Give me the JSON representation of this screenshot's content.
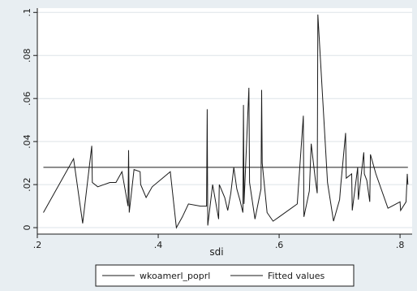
{
  "chart_data": {
    "type": "line",
    "xlabel": "sdi",
    "ylabel": "",
    "xlim": [
      0.2,
      0.82
    ],
    "ylim": [
      -0.003,
      0.102
    ],
    "xticks": [
      0.2,
      0.4,
      0.6,
      0.8
    ],
    "xtick_labels": [
      ".2",
      ".4",
      ".6",
      ".8"
    ],
    "yticks": [
      0,
      0.02,
      0.04,
      0.06,
      0.08,
      0.1
    ],
    "ytick_labels": [
      "0",
      ".02",
      ".04",
      ".06",
      ".08",
      ".1"
    ],
    "grid": "horizontal",
    "legend_position": "bottom",
    "series": [
      {
        "name": "wkoamerl_poprl",
        "color": "#1a1a1a",
        "points": [
          [
            0.21,
            0.007
          ],
          [
            0.26,
            0.032
          ],
          [
            0.275,
            0.002
          ],
          [
            0.29,
            0.038
          ],
          [
            0.291,
            0.021
          ],
          [
            0.3,
            0.019
          ],
          [
            0.32,
            0.021
          ],
          [
            0.33,
            0.021
          ],
          [
            0.34,
            0.026
          ],
          [
            0.35,
            0.01
          ],
          [
            0.351,
            0.036
          ],
          [
            0.352,
            0.007
          ],
          [
            0.36,
            0.027
          ],
          [
            0.37,
            0.026
          ],
          [
            0.371,
            0.02
          ],
          [
            0.38,
            0.014
          ],
          [
            0.39,
            0.019
          ],
          [
            0.42,
            0.026
          ],
          [
            0.43,
            0.0
          ],
          [
            0.44,
            0.005
          ],
          [
            0.45,
            0.011
          ],
          [
            0.47,
            0.01
          ],
          [
            0.48,
            0.01
          ],
          [
            0.481,
            0.055
          ],
          [
            0.482,
            0.001
          ],
          [
            0.49,
            0.02
          ],
          [
            0.5,
            0.004
          ],
          [
            0.501,
            0.02
          ],
          [
            0.51,
            0.014
          ],
          [
            0.515,
            0.008
          ],
          [
            0.52,
            0.016
          ],
          [
            0.525,
            0.028
          ],
          [
            0.53,
            0.018
          ],
          [
            0.535,
            0.013
          ],
          [
            0.54,
            0.007
          ],
          [
            0.541,
            0.057
          ],
          [
            0.542,
            0.011
          ],
          [
            0.55,
            0.065
          ],
          [
            0.551,
            0.021
          ],
          [
            0.56,
            0.004
          ],
          [
            0.57,
            0.018
          ],
          [
            0.571,
            0.064
          ],
          [
            0.572,
            0.03
          ],
          [
            0.58,
            0.007
          ],
          [
            0.59,
            0.003
          ],
          [
            0.6,
            0.005
          ],
          [
            0.63,
            0.011
          ],
          [
            0.64,
            0.052
          ],
          [
            0.641,
            0.005
          ],
          [
            0.65,
            0.017
          ],
          [
            0.653,
            0.039
          ],
          [
            0.66,
            0.022
          ],
          [
            0.663,
            0.016
          ],
          [
            0.664,
            0.099
          ],
          [
            0.68,
            0.021
          ],
          [
            0.69,
            0.003
          ],
          [
            0.7,
            0.013
          ],
          [
            0.702,
            0.02
          ],
          [
            0.71,
            0.044
          ],
          [
            0.711,
            0.023
          ],
          [
            0.72,
            0.025
          ],
          [
            0.721,
            0.008
          ],
          [
            0.73,
            0.028
          ],
          [
            0.731,
            0.013
          ],
          [
            0.74,
            0.035
          ],
          [
            0.741,
            0.025
          ],
          [
            0.745,
            0.022
          ],
          [
            0.75,
            0.012
          ],
          [
            0.751,
            0.034
          ],
          [
            0.76,
            0.025
          ],
          [
            0.78,
            0.009
          ],
          [
            0.8,
            0.012
          ],
          [
            0.801,
            0.008
          ],
          [
            0.81,
            0.012
          ],
          [
            0.812,
            0.025
          ],
          [
            0.813,
            0.02
          ]
        ]
      },
      {
        "name": "Fitted values",
        "color": "#1a1a1a",
        "points": [
          [
            0.21,
            0.028
          ],
          [
            0.813,
            0.028
          ]
        ]
      }
    ],
    "legend": [
      "wkoamerl_poprl",
      "Fitted values"
    ]
  }
}
